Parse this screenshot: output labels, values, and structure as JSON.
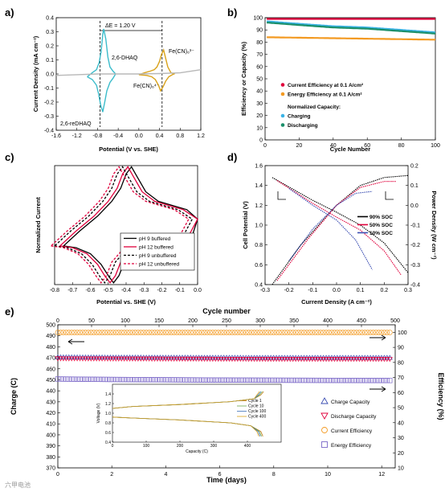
{
  "panel_labels": [
    "a)",
    "b)",
    "c)",
    "d)",
    "e)"
  ],
  "watermark": "六甲电池",
  "colors": {
    "teal": "#3cbccb",
    "gold": "#d9a21a",
    "red": "#e0003c",
    "orange": "#f39a22",
    "cyan": "#3ab3e6",
    "green": "#1a8f6a",
    "blue": "#3a4db2",
    "purple": "#7b68c8",
    "gray": "#b8b8b8",
    "black": "#000000"
  },
  "chart_data": [
    {
      "panel": "a",
      "type": "line",
      "xlabel": "Potential (V vs. SHE)",
      "ylabel": "Current Density (mA cm⁻²)",
      "xlim": [
        -1.6,
        1.2
      ],
      "ylim": [
        -0.4,
        0.4
      ],
      "xticks": [
        "-1.6",
        "-1.2",
        "-0.8",
        "-0.4",
        "0.0",
        "0.4",
        "0.8",
        "1.2"
      ],
      "yticks": [
        "0.4",
        "0.3",
        "0.2",
        "0.1",
        "0.0",
        "-0.1",
        "-0.2",
        "-0.3",
        "-0.4"
      ],
      "annotations": {
        "delta_e": "ΔE = 1.20 V",
        "dhaq": "2,6-DHAQ",
        "redhaq": "2,6-reDHAQ",
        "fe3": "Fe(CN)₆³⁻",
        "fe4": "Fe(CN)₆⁴⁻"
      },
      "series": [
        {
          "color_key": "teal",
          "x": [
            -1.0,
            -0.9,
            -0.82,
            -0.78,
            -0.74,
            -0.7,
            -0.66,
            -0.62,
            -0.56,
            -0.5,
            -0.45,
            -0.5,
            -0.56,
            -0.6,
            -0.64,
            -0.68,
            -0.7,
            -0.73,
            -0.77,
            -0.82,
            -0.9,
            -1.0
          ],
          "y": [
            -0.02,
            -0.04,
            -0.08,
            -0.14,
            -0.22,
            -0.27,
            -0.2,
            -0.12,
            -0.06,
            -0.03,
            0.0,
            0.02,
            0.05,
            0.12,
            0.25,
            0.32,
            0.28,
            0.16,
            0.08,
            0.03,
            0.01,
            -0.02
          ]
        },
        {
          "color_key": "gold",
          "x": [
            0.0,
            0.15,
            0.25,
            0.32,
            0.38,
            0.42,
            0.47,
            0.52,
            0.58,
            0.65,
            0.68,
            0.62,
            0.56,
            0.52,
            0.48,
            0.44,
            0.4,
            0.35,
            0.3,
            0.22,
            0.12,
            0.0
          ],
          "y": [
            -0.005,
            -0.01,
            -0.02,
            -0.04,
            -0.08,
            -0.12,
            -0.09,
            -0.05,
            -0.02,
            -0.005,
            0.0,
            0.01,
            0.05,
            0.11,
            0.17,
            0.14,
            0.09,
            0.05,
            0.03,
            0.02,
            0.01,
            -0.005
          ]
        },
        {
          "color_key": "gray",
          "x": [
            -1.6,
            -1.2,
            -0.8,
            -0.4,
            0.0,
            0.4,
            0.8,
            1.2
          ],
          "y": [
            -0.01,
            -0.005,
            0.0,
            0.0,
            0.0,
            0.003,
            0.008,
            0.03
          ]
        }
      ],
      "vlines": [
        -0.75,
        0.45
      ]
    },
    {
      "panel": "b",
      "type": "scatter",
      "xlabel": "Cycle Number",
      "ylabel": "Efficiency or Capacity (%)",
      "xlim": [
        0,
        100
      ],
      "ylim": [
        0,
        100
      ],
      "xticks": [
        "0",
        "20",
        "40",
        "60",
        "80",
        "100"
      ],
      "yticks": [
        "0",
        "10",
        "20",
        "30",
        "40",
        "50",
        "60",
        "70",
        "80",
        "90",
        "100"
      ],
      "legend": [
        "Current Efficiency at 0.1 A/cm²",
        "Energy Efficiency at 0.1 A/cm²",
        "Normalized Capacity:",
        "Charging",
        "Discharging"
      ],
      "series": [
        {
          "name": "Current Efficiency at 0.1 A/cm²",
          "color_key": "red",
          "x": [
            1,
            100
          ],
          "y": [
            99,
            99
          ]
        },
        {
          "name": "Energy Efficiency at 0.1 A/cm²",
          "color_key": "orange",
          "x": [
            1,
            100
          ],
          "y": [
            84,
            82
          ]
        },
        {
          "name": "Charging",
          "color_key": "cyan",
          "x": [
            1,
            20,
            40,
            60,
            80,
            100
          ],
          "y": [
            97,
            95,
            93,
            92,
            90,
            88
          ]
        },
        {
          "name": "Discharging",
          "color_key": "green",
          "x": [
            1,
            20,
            40,
            60,
            80,
            100
          ],
          "y": [
            96,
            94,
            92,
            91,
            89,
            87
          ]
        }
      ]
    },
    {
      "panel": "c",
      "type": "line",
      "xlabel": "Potential vs. SHE (V)",
      "ylabel": "Normalized Current",
      "xlim": [
        -0.8,
        0.0
      ],
      "ylim": [
        -1.0,
        1.0
      ],
      "xticks": [
        "-0.8",
        "-0.7",
        "-0.6",
        "-0.5",
        "-0.4",
        "-0.3",
        "-0.2",
        "-0.1",
        "0.0"
      ],
      "legend": [
        "pH 9  buffered",
        "pH 12 buffered",
        "pH 9  unbuffered",
        "pH 12 unbuffered"
      ],
      "series": [
        {
          "name": "pH 9  buffered",
          "color_key": "black",
          "dash": false,
          "shift": 0.02
        },
        {
          "name": "pH 12 buffered",
          "color_key": "red",
          "dash": false,
          "shift": 0.0
        },
        {
          "name": "pH 9  unbuffered",
          "color_key": "black",
          "dash": true,
          "shift": -0.03
        },
        {
          "name": "pH 12 unbuffered",
          "color_key": "red",
          "dash": true,
          "shift": -0.05
        }
      ]
    },
    {
      "panel": "d",
      "type": "line",
      "xlabel": "Current Density (A cm⁻²)",
      "ylabel": "Cell Potential (V)",
      "y2label": "Power Density (W cm⁻²)",
      "xlim": [
        -0.3,
        0.3
      ],
      "ylim": [
        0.4,
        1.6
      ],
      "y2lim": [
        -0.4,
        0.2
      ],
      "xticks": [
        "-0.3",
        "-0.2",
        "-0.1",
        "0.0",
        "0.1",
        "0.2",
        "0.3"
      ],
      "yticks": [
        "1.6",
        "1.4",
        "1.2",
        "1.0",
        "0.8",
        "0.6",
        "0.4"
      ],
      "y2ticks": [
        "0.2",
        "0.1",
        "0.0",
        "-0.1",
        "-0.2",
        "-0.3",
        "-0.4"
      ],
      "legend": [
        "90% SOC",
        "50% SOC",
        "10% SOC"
      ],
      "series": [
        {
          "name": "90% SOC",
          "color_key": "black",
          "v": {
            "x": [
              -0.27,
              -0.1,
              0.0,
              0.1,
              0.2,
              0.3
            ],
            "y": [
              1.48,
              1.25,
              1.13,
              1.0,
              0.82,
              0.52
            ]
          },
          "p": {
            "x": [
              -0.27,
              -0.15,
              0.0,
              0.1,
              0.2,
              0.3
            ],
            "y": [
              -0.4,
              -0.2,
              0.0,
              0.1,
              0.14,
              0.15
            ]
          }
        },
        {
          "name": "50% SOC",
          "color_key": "red",
          "v": {
            "x": [
              -0.25,
              -0.1,
              0.0,
              0.1,
              0.2,
              0.27
            ],
            "y": [
              1.45,
              1.22,
              1.08,
              0.95,
              0.74,
              0.5
            ]
          },
          "p": {
            "x": [
              -0.25,
              -0.12,
              0.0,
              0.1,
              0.2,
              0.25
            ],
            "y": [
              -0.38,
              -0.17,
              0.0,
              0.09,
              0.12,
              0.12
            ]
          }
        },
        {
          "name": "10% SOC",
          "color_key": "blue",
          "v": {
            "x": [
              -0.2,
              -0.1,
              0.0,
              0.08,
              0.15
            ],
            "y": [
              1.37,
              1.2,
              1.05,
              0.85,
              0.55
            ]
          },
          "p": {
            "x": [
              -0.2,
              -0.1,
              0.0,
              0.08,
              0.15
            ],
            "y": [
              -0.28,
              -0.12,
              0.0,
              0.06,
              0.07
            ]
          }
        }
      ]
    },
    {
      "panel": "e",
      "type": "scatter",
      "xlabel": "Time (days)",
      "x2label": "Cycle number",
      "ylabel": "Charge (C)",
      "y2label": "Efficiency (%)",
      "xlim": [
        0,
        12.5
      ],
      "x2lim": [
        0,
        500
      ],
      "ylim": [
        370,
        500
      ],
      "y2lim": [
        10,
        105
      ],
      "xticks": [
        "0",
        "2",
        "4",
        "6",
        "8",
        "10",
        "12"
      ],
      "x2ticks": [
        "0",
        "50",
        "100",
        "150",
        "200",
        "250",
        "300",
        "350",
        "400",
        "450",
        "500"
      ],
      "yticks": [
        "500",
        "490",
        "480",
        "470",
        "460",
        "450",
        "440",
        "430",
        "420",
        "410",
        "400",
        "390",
        "380",
        "370"
      ],
      "y2ticks": [
        "100",
        "90",
        "80",
        "70",
        "60",
        "50",
        "40",
        "30",
        "20",
        "10"
      ],
      "legend": [
        "Charge Capacity",
        "Discharge Capacity",
        "Current Efficiency",
        "Energy Efficiency"
      ],
      "series": [
        {
          "name": "Charge Capacity",
          "color_key": "blue",
          "marker": "triangle",
          "axis": "y",
          "x": [
            0,
            2,
            4,
            6,
            8,
            10,
            12.3
          ],
          "y": [
            470.5,
            470.3,
            470.2,
            470.1,
            470.0,
            470.0,
            470.0
          ]
        },
        {
          "name": "Discharge Capacity",
          "color_key": "red",
          "marker": "triangle-down",
          "axis": "y",
          "x": [
            0,
            2,
            4,
            6,
            8,
            10,
            12.3
          ],
          "y": [
            469.5,
            469.3,
            469.2,
            469.1,
            469.0,
            469.0,
            469.0
          ]
        },
        {
          "name": "Current Efficiency",
          "color_key": "orange",
          "marker": "circle",
          "axis": "y2",
          "x": [
            0,
            2,
            4,
            6,
            8,
            10,
            12.3
          ],
          "y": [
            99.9,
            99.9,
            99.9,
            99.9,
            99.9,
            99.9,
            99.9
          ]
        },
        {
          "name": "Energy Efficiency",
          "color_key": "purple",
          "marker": "square",
          "axis": "y2",
          "x": [
            0,
            2,
            4,
            6,
            8,
            10,
            12.3
          ],
          "y": [
            69,
            68.7,
            68.5,
            68.3,
            68.2,
            68.1,
            68.0
          ]
        }
      ],
      "inset": {
        "xlabel": "Capacity (C)",
        "ylabel": "Voltage (V)",
        "xlim": [
          0,
          500
        ],
        "ylim": [
          0.4,
          1.6
        ],
        "xticks": [
          "0",
          "100",
          "200",
          "300",
          "400"
        ],
        "yticks": [
          "1.4",
          "1.2",
          "1.0",
          "0.8",
          "0.6",
          "0.4"
        ],
        "legend": [
          "Cycle 1",
          "Cycle 10",
          "Cycle 100",
          "Cycle 400"
        ],
        "colors": [
          "#c07a12",
          "#6aa84f",
          "#3b6fb6",
          "#d9a21a"
        ]
      }
    }
  ]
}
